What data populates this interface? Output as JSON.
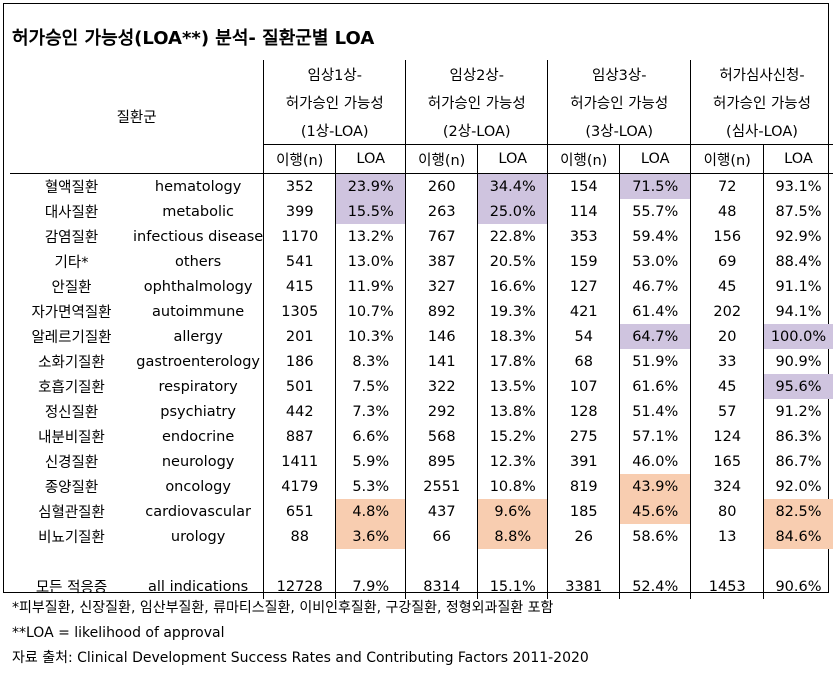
{
  "title": "허가승인 가능성(LOA**) 분석- 질환군별 LOA",
  "header": {
    "category_label": "질환군",
    "groups": [
      {
        "line1": "임상1상-",
        "line2": "허가승인 가능성",
        "line3": "(1상-LOA)"
      },
      {
        "line1": "임상2상-",
        "line2": "허가승인 가능성",
        "line3": "(2상-LOA)"
      },
      {
        "line1": "임상3상-",
        "line2": "허가승인 가능성",
        "line3": "(3상-LOA)"
      },
      {
        "line1": "허가심사신청-",
        "line2": "허가승인 가능성",
        "line3": "(심사-LOA)"
      }
    ],
    "sub_n": "이행(n)",
    "sub_loa": "LOA"
  },
  "rows": [
    {
      "kr": "혈액질환",
      "en": "hematology",
      "n1": "352",
      "l1": "23.9%",
      "n2": "260",
      "l2": "34.4%",
      "n3": "154",
      "l3": "71.5%",
      "n4": "72",
      "l4": "93.1%"
    },
    {
      "kr": "대사질환",
      "en": "metabolic",
      "n1": "399",
      "l1": "15.5%",
      "n2": "263",
      "l2": "25.0%",
      "n3": "114",
      "l3": "55.7%",
      "n4": "48",
      "l4": "87.5%"
    },
    {
      "kr": "감염질환",
      "en": "infectious disease",
      "n1": "1170",
      "l1": "13.2%",
      "n2": "767",
      "l2": "22.8%",
      "n3": "353",
      "l3": "59.4%",
      "n4": "156",
      "l4": "92.9%"
    },
    {
      "kr": "기타*",
      "en": "others",
      "n1": "541",
      "l1": "13.0%",
      "n2": "387",
      "l2": "20.5%",
      "n3": "159",
      "l3": "53.0%",
      "n4": "69",
      "l4": "88.4%"
    },
    {
      "kr": "안질환",
      "en": "ophthalmology",
      "n1": "415",
      "l1": "11.9%",
      "n2": "327",
      "l2": "16.6%",
      "n3": "127",
      "l3": "46.7%",
      "n4": "45",
      "l4": "91.1%"
    },
    {
      "kr": "자가면역질환",
      "en": "autoimmune",
      "n1": "1305",
      "l1": "10.7%",
      "n2": "892",
      "l2": "19.3%",
      "n3": "421",
      "l3": "61.4%",
      "n4": "202",
      "l4": "94.1%"
    },
    {
      "kr": "알레르기질환",
      "en": "allergy",
      "n1": "201",
      "l1": "10.3%",
      "n2": "146",
      "l2": "18.3%",
      "n3": "54",
      "l3": "64.7%",
      "n4": "20",
      "l4": "100.0%"
    },
    {
      "kr": "소화기질환",
      "en": "gastroenterology",
      "n1": "186",
      "l1": "8.3%",
      "n2": "141",
      "l2": "17.8%",
      "n3": "68",
      "l3": "51.9%",
      "n4": "33",
      "l4": "90.9%"
    },
    {
      "kr": "호흡기질환",
      "en": "respiratory",
      "n1": "501",
      "l1": "7.5%",
      "n2": "322",
      "l2": "13.5%",
      "n3": "107",
      "l3": "61.6%",
      "n4": "45",
      "l4": "95.6%"
    },
    {
      "kr": "정신질환",
      "en": "psychiatry",
      "n1": "442",
      "l1": "7.3%",
      "n2": "292",
      "l2": "13.8%",
      "n3": "128",
      "l3": "51.4%",
      "n4": "57",
      "l4": "91.2%"
    },
    {
      "kr": "내분비질환",
      "en": "endocrine",
      "n1": "887",
      "l1": "6.6%",
      "n2": "568",
      "l2": "15.2%",
      "n3": "275",
      "l3": "57.1%",
      "n4": "124",
      "l4": "86.3%"
    },
    {
      "kr": "신경질환",
      "en": "neurology",
      "n1": "1411",
      "l1": "5.9%",
      "n2": "895",
      "l2": "12.3%",
      "n3": "391",
      "l3": "46.0%",
      "n4": "165",
      "l4": "86.7%"
    },
    {
      "kr": "종양질환",
      "en": "oncology",
      "n1": "4179",
      "l1": "5.3%",
      "n2": "2551",
      "l2": "10.8%",
      "n3": "819",
      "l3": "43.9%",
      "n4": "324",
      "l4": "92.0%"
    },
    {
      "kr": "심혈관질환",
      "en": "cardiovascular",
      "n1": "651",
      "l1": "4.8%",
      "n2": "437",
      "l2": "9.6%",
      "n3": "185",
      "l3": "45.6%",
      "n4": "80",
      "l4": "82.5%"
    },
    {
      "kr": "비뇨기질환",
      "en": "urology",
      "n1": "88",
      "l1": "3.6%",
      "n2": "66",
      "l2": "8.8%",
      "n3": "26",
      "l3": "58.6%",
      "n4": "13",
      "l4": "84.6%"
    }
  ],
  "total": {
    "kr": "모든 적응증",
    "en": "all indications",
    "n1": "12728",
    "l1": "7.9%",
    "n2": "8314",
    "l2": "15.1%",
    "n3": "3381",
    "l3": "52.4%",
    "n4": "1453",
    "l4": "90.6%"
  },
  "highlight_colors": {
    "top": "#cfc4df",
    "bottom": "#f8cdb0"
  },
  "notes": [
    "*피부질환, 신장질환, 임산부질환, 류마티스질환, 이비인후질환, 구강질환, 정형외과질환 포함",
    "**LOA = likelihood of approval",
    "자료 출처: Clinical Development Success Rates and Contributing Factors 2011-2020"
  ]
}
